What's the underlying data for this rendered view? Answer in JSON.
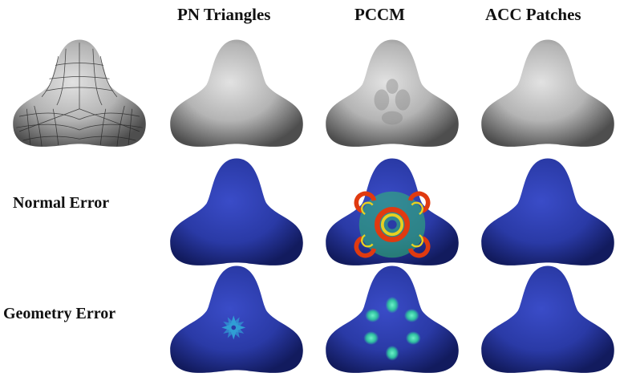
{
  "figure": {
    "column_titles": [
      "PN Triangles",
      "PCCM",
      "ACC Patches"
    ],
    "row_titles": [
      "Normal Error",
      "Geometry Error"
    ],
    "colors": {
      "shading_gray": "#a8a8a8",
      "error_base_blue": "#2a3aa6",
      "error_high_red": "#e03a10",
      "error_mid_yellow": "#e8d020",
      "error_low_green": "#30c070",
      "error_cyan": "#30a8d8"
    }
  }
}
